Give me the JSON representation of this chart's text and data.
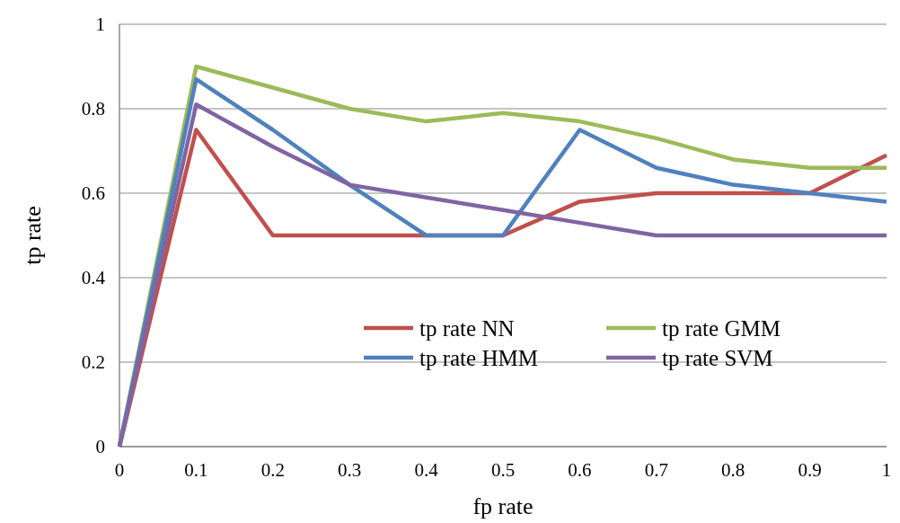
{
  "chart_data": {
    "type": "line",
    "xlabel": "fp rate",
    "ylabel": "tp rate",
    "x": [
      0,
      0.1,
      0.2,
      0.3,
      0.4,
      0.5,
      0.6,
      0.7,
      0.8,
      0.9,
      1
    ],
    "series": [
      {
        "name": "tp rate NN",
        "color": "#c0504d",
        "values": [
          0,
          0.75,
          0.5,
          0.5,
          0.5,
          0.5,
          0.58,
          0.6,
          0.6,
          0.6,
          0.69
        ]
      },
      {
        "name": "tp rate GMM",
        "color": "#9bbb59",
        "values": [
          0,
          0.9,
          0.85,
          0.8,
          0.77,
          0.79,
          0.77,
          0.73,
          0.68,
          0.66,
          0.66
        ]
      },
      {
        "name": "tp rate HMM",
        "color": "#4f81bd",
        "values": [
          0,
          0.87,
          0.75,
          0.62,
          0.5,
          0.5,
          0.75,
          0.66,
          0.62,
          0.6,
          0.58
        ]
      },
      {
        "name": "tp rate SVM",
        "color": "#8064a2",
        "values": [
          0,
          0.81,
          0.71,
          0.62,
          0.59,
          0.56,
          0.53,
          0.5,
          0.5,
          0.5,
          0.5
        ]
      }
    ],
    "xlim": [
      0,
      1
    ],
    "xticks": [
      0,
      0.1,
      0.2,
      0.3,
      0.4,
      0.5,
      0.6,
      0.7,
      0.8,
      0.9,
      1
    ],
    "ylim": [
      0,
      1
    ],
    "yticks": [
      0,
      0.2,
      0.4,
      0.6,
      0.8,
      1
    ],
    "grid": "y",
    "legend": "bottom right",
    "marker": "none",
    "line_style": "solid"
  }
}
